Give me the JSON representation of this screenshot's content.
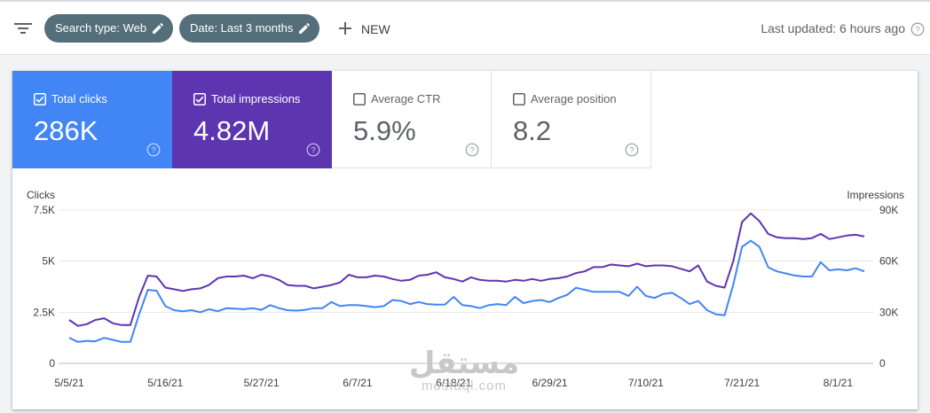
{
  "toolbar": {
    "filter_icon": "filter-list-icon",
    "chips": [
      {
        "label": "Search type: Web",
        "icon": "pencil-icon"
      },
      {
        "label": "Date: Last 3 months",
        "icon": "pencil-icon"
      }
    ],
    "new_label": "NEW",
    "last_updated": "Last updated: 6 hours ago"
  },
  "metrics": [
    {
      "label": "Total clicks",
      "value": "286K",
      "checked": true,
      "color": "#4285f4"
    },
    {
      "label": "Total impressions",
      "value": "4.82M",
      "checked": true,
      "color": "#5e35b1"
    },
    {
      "label": "Average CTR",
      "value": "5.9%",
      "checked": false
    },
    {
      "label": "Average position",
      "value": "8.2",
      "checked": false
    }
  ],
  "watermark": {
    "logo": "مستقل",
    "text": "mostaql.com"
  },
  "chart_data": {
    "type": "line",
    "xlabel": "",
    "ylabel": "Clicks",
    "y2label": "Impressions",
    "left_ticks": [
      "0",
      "2.5K",
      "5K",
      "7.5K"
    ],
    "right_ticks": [
      "0",
      "30K",
      "60K",
      "90K"
    ],
    "ylim": [
      0,
      7500
    ],
    "y2lim": [
      0,
      90000
    ],
    "x_ticks": [
      "5/5/21",
      "5/16/21",
      "5/27/21",
      "6/7/21",
      "6/18/21",
      "6/29/21",
      "7/10/21",
      "7/21/21",
      "8/1/21"
    ],
    "grid": true,
    "series": [
      {
        "name": "Clicks",
        "axis": "left",
        "color": "#4285f4",
        "values": [
          1250,
          1050,
          1100,
          1080,
          1250,
          1150,
          1050,
          1050,
          2400,
          3600,
          3550,
          2800,
          2600,
          2550,
          2600,
          2500,
          2650,
          2550,
          2700,
          2680,
          2650,
          2700,
          2620,
          2850,
          2700,
          2600,
          2580,
          2620,
          2700,
          2700,
          3000,
          2800,
          2850,
          2850,
          2800,
          2750,
          2800,
          3100,
          3050,
          2900,
          3000,
          2900,
          2870,
          2880,
          3250,
          2850,
          2800,
          2700,
          2850,
          2900,
          2850,
          3250,
          2950,
          3050,
          3100,
          3000,
          3200,
          3350,
          3700,
          3600,
          3500,
          3500,
          3500,
          3500,
          3300,
          3750,
          3300,
          3200,
          3400,
          3450,
          3200,
          2900,
          3050,
          2600,
          2400,
          2350,
          3850,
          5700,
          6000,
          5700,
          4700,
          4500,
          4400,
          4300,
          4250,
          4250,
          4950,
          4550,
          4600,
          4550,
          4650,
          4500
        ]
      },
      {
        "name": "Impressions",
        "axis": "right",
        "color": "#5e35b1",
        "values": [
          25500,
          22000,
          23000,
          25500,
          26500,
          23500,
          22500,
          22500,
          39000,
          51500,
          51000,
          44500,
          43500,
          42500,
          43500,
          44000,
          46000,
          50000,
          51000,
          51000,
          51500,
          50000,
          52000,
          51000,
          49000,
          46000,
          45500,
          45500,
          44000,
          45000,
          46000,
          47500,
          52000,
          50500,
          50500,
          51500,
          51000,
          49500,
          48500,
          49000,
          51500,
          52000,
          53500,
          50500,
          49500,
          48000,
          50500,
          49000,
          48500,
          48500,
          48000,
          49000,
          48500,
          49500,
          48500,
          49500,
          50000,
          51000,
          53000,
          54000,
          56500,
          56500,
          58000,
          57500,
          57000,
          58500,
          57000,
          57500,
          57500,
          57000,
          55500,
          54000,
          57500,
          48000,
          45500,
          44500,
          60000,
          83000,
          88000,
          83500,
          76000,
          74000,
          73500,
          73500,
          73000,
          73500,
          76000,
          73000,
          74000,
          75000,
          75500,
          74500
        ]
      }
    ]
  }
}
